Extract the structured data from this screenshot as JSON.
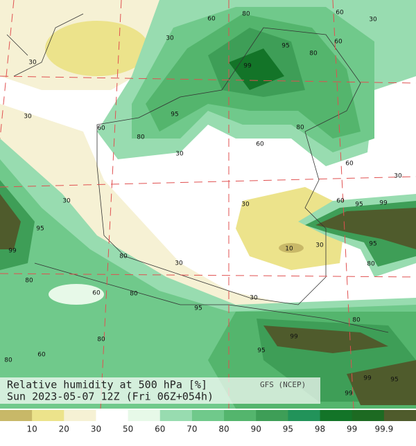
{
  "header": {
    "title": "Relative humidity at 500 hPa [%]",
    "subtitle": "Sun 2023-05-07 12Z (Fri 06Z+054h)",
    "source": "GFS (NCEP)"
  },
  "contour_labels": [
    "60",
    "80",
    "60",
    "30",
    "30",
    "95",
    "99",
    "80",
    "60",
    "30",
    "95",
    "80",
    "60",
    "60",
    "80",
    "30",
    "30",
    "10",
    "30",
    "95",
    "99",
    "80",
    "30",
    "30",
    "60",
    "95",
    "99",
    "60",
    "80",
    "95",
    "80",
    "95",
    "99",
    "95",
    "80",
    "99",
    "80",
    "60",
    "80",
    "30",
    "30",
    "80",
    "30",
    "95",
    "99",
    "60"
  ],
  "legend": {
    "colors": [
      "#c8b868",
      "#ece38b",
      "#f6f1d4",
      "#ffffff",
      "#e7f9e8",
      "#98dcb0",
      "#70c98b",
      "#54b56d",
      "#3e9e57",
      "#22935a",
      "#137428",
      "#1d6a22",
      "#4f5b2c"
    ],
    "labels": [
      "10",
      "20",
      "30",
      "50",
      "60",
      "70",
      "80",
      "90",
      "95",
      "98",
      "99",
      "99.9"
    ]
  }
}
